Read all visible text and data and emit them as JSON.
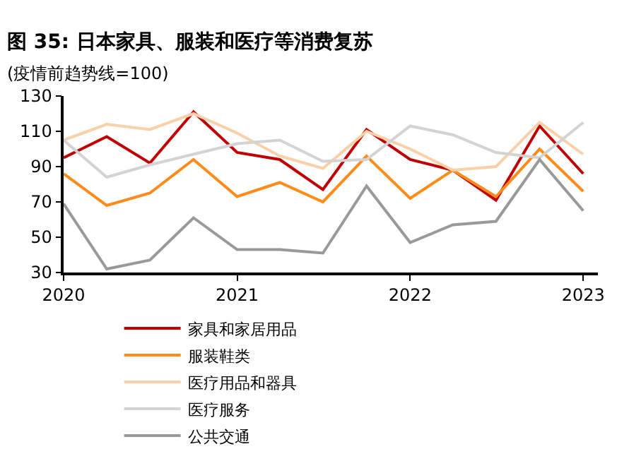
{
  "chart_data": {
    "type": "line",
    "title": "图 35: 日本家具、服装和医疗等消费复苏",
    "subtitle": "(疫情前趋势线=100)",
    "x": [
      "2020-01",
      "2020-04",
      "2020-07",
      "2020-10",
      "2021-01",
      "2021-04",
      "2021-07",
      "2021-10",
      "2022-01",
      "2022-04",
      "2022-07",
      "2022-10",
      "2023-01"
    ],
    "series": [
      {
        "name": "家具和家居用品",
        "color": "#c00000",
        "values": [
          95,
          107,
          92,
          121,
          98,
          94,
          77,
          111,
          94,
          88,
          71,
          113,
          86
        ]
      },
      {
        "name": "服装鞋类",
        "color": "#ff8c1a",
        "values": [
          86,
          68,
          75,
          94,
          73,
          81,
          70,
          96,
          72,
          88,
          73,
          100,
          76
        ]
      },
      {
        "name": "医疗用品和器具",
        "color": "#fbd0a8",
        "values": [
          105,
          114,
          111,
          120,
          109,
          96,
          89,
          110,
          100,
          88,
          90,
          115,
          97
        ]
      },
      {
        "name": "医疗服务",
        "color": "#d3d3d3",
        "values": [
          105,
          84,
          91,
          97,
          103,
          105,
          93,
          94,
          113,
          108,
          98,
          95,
          115
        ]
      },
      {
        "name": "公共交通",
        "color": "#999999",
        "values": [
          69,
          32,
          37,
          61,
          43,
          43,
          41,
          79,
          47,
          57,
          59,
          94,
          65
        ]
      }
    ],
    "xlim": [
      "2020-01",
      "2023-02"
    ],
    "xticks": [
      "2020",
      "2021",
      "2022",
      "2023"
    ],
    "ylim": [
      30,
      130
    ],
    "yticks": [
      30,
      50,
      70,
      90,
      110,
      130
    ],
    "legend": "bottom",
    "marker": "none",
    "line_style": "solid"
  }
}
